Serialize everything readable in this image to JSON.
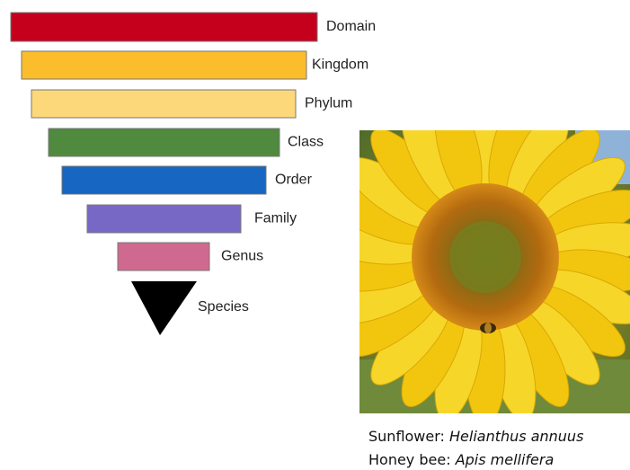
{
  "levels": [
    "Domain",
    "Kingdom",
    "Phylum",
    "Class",
    "Order",
    "Family",
    "Genus",
    "Species"
  ],
  "caption": {
    "line1": {
      "prefix": "Sunflower:",
      "name": "Helianthus annuus"
    },
    "line2": {
      "prefix": "Honey bee:",
      "name": "Apis mellifera"
    }
  }
}
